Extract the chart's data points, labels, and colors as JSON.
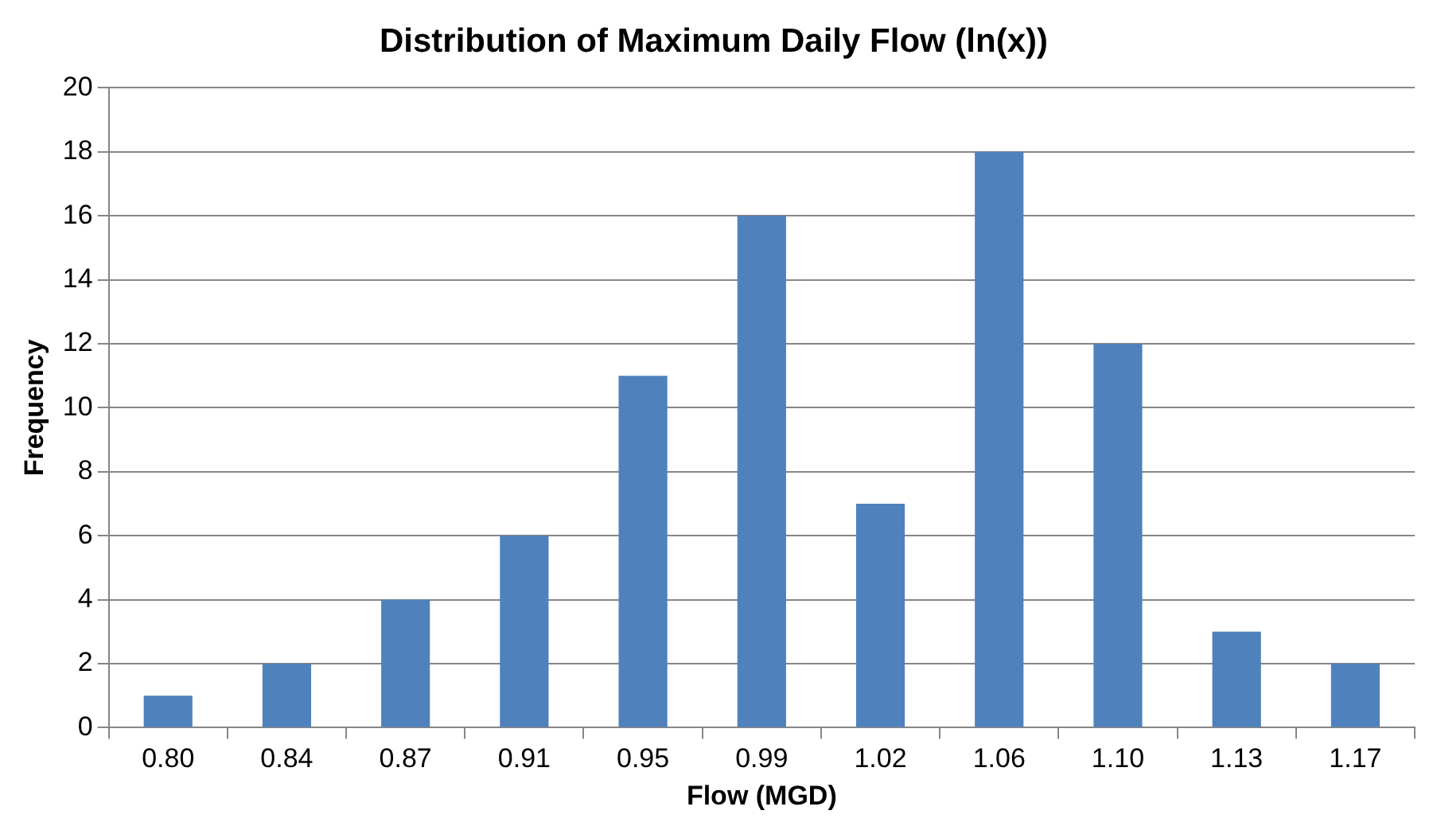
{
  "chart_data": {
    "type": "bar",
    "title": "Distribution of Maximum Daily Flow (ln(x))",
    "xlabel": "Flow (MGD)",
    "ylabel": "Frequency",
    "categories": [
      "0.80",
      "0.84",
      "0.87",
      "0.91",
      "0.95",
      "0.99",
      "1.02",
      "1.06",
      "1.10",
      "1.13",
      "1.17"
    ],
    "values": [
      1,
      2,
      4,
      6,
      11,
      16,
      7,
      18,
      12,
      3,
      2
    ],
    "color": "#4f81bd",
    "ylim": [
      0,
      20
    ],
    "yticks": [
      0,
      2,
      4,
      6,
      8,
      10,
      12,
      14,
      16,
      18,
      20
    ],
    "grid": "y",
    "legend": false
  }
}
